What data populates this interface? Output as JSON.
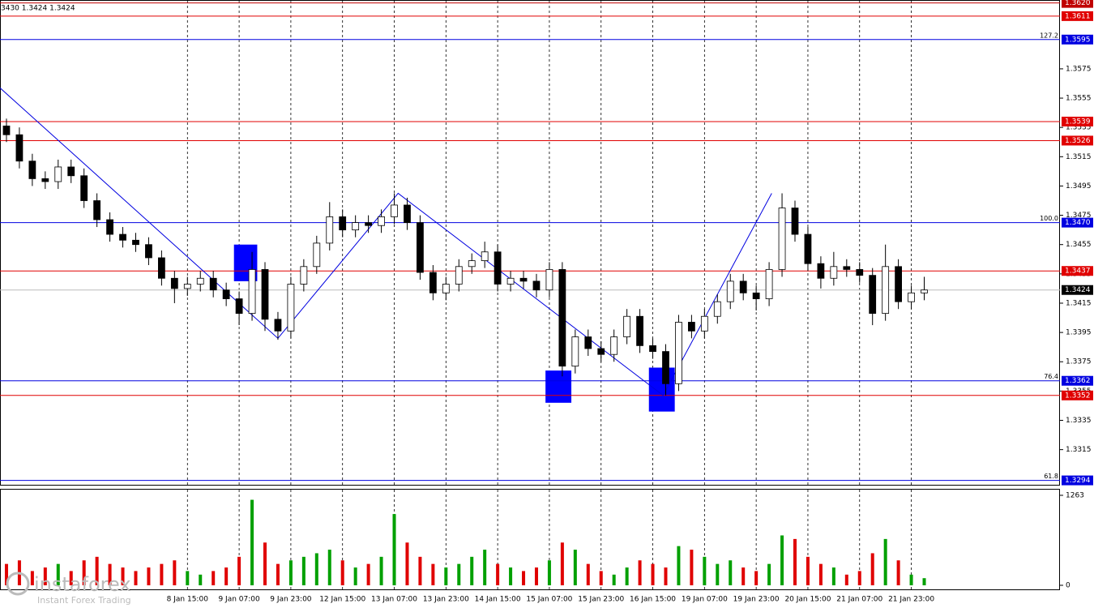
{
  "chart_data": {
    "type": "candlestick",
    "header": "3430 1.3424 1.3424",
    "watermark": "instaforex",
    "watermark_sub": "Instant Forex Trading",
    "xlim": [
      -0.5,
      81.5
    ],
    "xticks": [
      {
        "value": 14,
        "label": "8 Jan 15:00"
      },
      {
        "value": 18,
        "label": "9 Jan 07:00"
      },
      {
        "value": 22,
        "label": "9 Jan 23:00"
      },
      {
        "value": 26,
        "label": "12 Jan 15:00"
      },
      {
        "value": 30,
        "label": "13 Jan 07:00"
      },
      {
        "value": 34,
        "label": "13 Jan 23:00"
      },
      {
        "value": 38,
        "label": "14 Jan 15:00"
      },
      {
        "value": 42,
        "label": "15 Jan 07:00"
      },
      {
        "value": 46,
        "label": "15 Jan 23:00"
      },
      {
        "value": 50,
        "label": "16 Jan 15:00"
      },
      {
        "value": 54,
        "label": "19 Jan 07:00"
      },
      {
        "value": 58,
        "label": "19 Jan 23:00"
      },
      {
        "value": 62,
        "label": "20 Jan 15:00"
      },
      {
        "value": 66,
        "label": "21 Jan 07:00"
      },
      {
        "value": 70,
        "label": "21 Jan 23:00"
      }
    ],
    "grid": true,
    "ylim": [
      1.3291,
      1.3622
    ],
    "yticks": [
      1.3315,
      1.3335,
      1.3355,
      1.3375,
      1.3395,
      1.3415,
      1.3435,
      1.3455,
      1.3475,
      1.3495,
      1.3515,
      1.3535,
      1.3555,
      1.3575
    ],
    "open": [
      1.3536,
      1.353,
      1.3512,
      1.35,
      1.3498,
      1.3508,
      1.3502,
      1.3485,
      1.3472,
      1.3462,
      1.3458,
      1.3455,
      1.3446,
      1.3432,
      1.3425,
      1.3428,
      1.3432,
      1.3424,
      1.3418,
      1.3408,
      1.3438,
      1.3404,
      1.3396,
      1.3428,
      1.344,
      1.3456,
      1.3474,
      1.3465,
      1.347,
      1.3468,
      1.3474,
      1.3482,
      1.347,
      1.3436,
      1.3422,
      1.3428,
      1.344,
      1.3444,
      1.345,
      1.3428,
      1.3432,
      1.343,
      1.3424,
      1.3438,
      1.3372,
      1.3392,
      1.3384,
      1.338,
      1.3392,
      1.3406,
      1.3386,
      1.3382,
      1.336,
      1.3402,
      1.3396,
      1.3406,
      1.3416,
      1.343,
      1.3422,
      1.3418,
      1.3438,
      1.348,
      1.3462,
      1.3442,
      1.3432,
      1.344,
      1.3438,
      1.3434,
      1.3408,
      1.344,
      1.3416,
      1.3422
    ],
    "high": [
      1.3541,
      1.3535,
      1.3517,
      1.3505,
      1.3513,
      1.3513,
      1.3507,
      1.349,
      1.3477,
      1.3467,
      1.3463,
      1.346,
      1.3451,
      1.3437,
      1.3433,
      1.3437,
      1.3437,
      1.3429,
      1.3423,
      1.345,
      1.3443,
      1.3409,
      1.3433,
      1.3445,
      1.3461,
      1.3484,
      1.3479,
      1.3475,
      1.3475,
      1.3479,
      1.349,
      1.3487,
      1.3475,
      1.3441,
      1.3433,
      1.3445,
      1.3449,
      1.3457,
      1.3455,
      1.3437,
      1.3437,
      1.3435,
      1.3443,
      1.3443,
      1.3397,
      1.3397,
      1.3389,
      1.3397,
      1.3411,
      1.3411,
      1.3391,
      1.3387,
      1.3407,
      1.3407,
      1.3411,
      1.3421,
      1.3435,
      1.3435,
      1.3427,
      1.3443,
      1.349,
      1.3485,
      1.3467,
      1.3447,
      1.345,
      1.3445,
      1.3443,
      1.3439,
      1.3455,
      1.3445,
      1.3427,
      1.3433
    ],
    "low": [
      1.3525,
      1.3507,
      1.3495,
      1.3493,
      1.3493,
      1.3497,
      1.348,
      1.3467,
      1.3457,
      1.3453,
      1.345,
      1.3441,
      1.3427,
      1.3415,
      1.342,
      1.3423,
      1.3419,
      1.3413,
      1.34,
      1.3403,
      1.3396,
      1.339,
      1.3391,
      1.3423,
      1.3435,
      1.3451,
      1.346,
      1.346,
      1.3463,
      1.3463,
      1.3469,
      1.3465,
      1.3431,
      1.3417,
      1.3417,
      1.3423,
      1.3435,
      1.3439,
      1.3423,
      1.3423,
      1.3425,
      1.3419,
      1.3419,
      1.3365,
      1.3367,
      1.3379,
      1.3375,
      1.3375,
      1.3387,
      1.3381,
      1.3377,
      1.3352,
      1.3355,
      1.3391,
      1.3391,
      1.3401,
      1.3411,
      1.3417,
      1.341,
      1.3413,
      1.3433,
      1.3457,
      1.3437,
      1.3425,
      1.3427,
      1.3433,
      1.3429,
      1.34,
      1.3403,
      1.3411,
      1.3411,
      1.3417
    ],
    "close": [
      1.353,
      1.3512,
      1.35,
      1.3498,
      1.3508,
      1.3502,
      1.3485,
      1.3472,
      1.3462,
      1.3458,
      1.3455,
      1.3446,
      1.3432,
      1.3425,
      1.3428,
      1.3432,
      1.3424,
      1.3418,
      1.3408,
      1.3438,
      1.3404,
      1.3396,
      1.3428,
      1.344,
      1.3456,
      1.3474,
      1.3465,
      1.347,
      1.3468,
      1.3474,
      1.3482,
      1.347,
      1.3436,
      1.3422,
      1.3428,
      1.344,
      1.3444,
      1.345,
      1.3428,
      1.3432,
      1.343,
      1.3424,
      1.3438,
      1.3372,
      1.3392,
      1.3384,
      1.338,
      1.3392,
      1.3406,
      1.3386,
      1.3382,
      1.336,
      1.3402,
      1.3396,
      1.3406,
      1.3416,
      1.343,
      1.3422,
      1.3418,
      1.3438,
      1.348,
      1.3462,
      1.3442,
      1.3432,
      1.344,
      1.3438,
      1.3434,
      1.3408,
      1.344,
      1.3416,
      1.3422,
      1.3424
    ],
    "volume": [
      300,
      350,
      200,
      250,
      300,
      200,
      350,
      400,
      300,
      250,
      200,
      250,
      300,
      350,
      200,
      150,
      200,
      250,
      400,
      1200,
      600,
      300,
      350,
      400,
      450,
      500,
      350,
      250,
      300,
      400,
      1000,
      600,
      400,
      300,
      250,
      300,
      400,
      500,
      300,
      250,
      200,
      250,
      350,
      600,
      500,
      300,
      200,
      150,
      250,
      350,
      300,
      250,
      550,
      500,
      400,
      300,
      350,
      250,
      200,
      300,
      700,
      650,
      400,
      300,
      250,
      150,
      200,
      450,
      650,
      350,
      150,
      100
    ],
    "volume_ylim": [
      0,
      1263
    ],
    "volume_yticks": [
      0,
      1263
    ],
    "up_volume_color": "#00a000",
    "down_volume_color": "#e00000",
    "levels": [
      {
        "value": 1.362,
        "label": "1.3620",
        "color": "#c00000"
      },
      {
        "value": 1.3611,
        "label": "1.3611",
        "color": "#e00000"
      },
      {
        "value": 1.3595,
        "label": "1.3595",
        "color": "#0000e0",
        "fib": "127.2"
      },
      {
        "value": 1.3539,
        "label": "1.3539",
        "color": "#e00000"
      },
      {
        "value": 1.3526,
        "label": "1.3526",
        "color": "#e00000"
      },
      {
        "value": 1.347,
        "label": "1.3470",
        "color": "#0000e0",
        "fib": "100.0"
      },
      {
        "value": 1.3437,
        "label": "1.3437",
        "color": "#e00000"
      },
      {
        "value": 1.3362,
        "label": "1.3362",
        "color": "#0000e0",
        "fib": "76.4"
      },
      {
        "value": 1.3352,
        "label": "1.3352",
        "color": "#e00000"
      },
      {
        "value": 1.3294,
        "label": "1.3294",
        "color": "#0000e0",
        "fib": "61.8"
      }
    ],
    "current_price": 1.3424,
    "zigzag": {
      "x": [
        -0.5,
        21,
        30.3,
        50.8,
        59.2
      ],
      "values": [
        1.3562,
        1.3391,
        1.349,
        1.3352,
        1.349
      ],
      "color": "#0000e0"
    },
    "zones": [
      {
        "x": [
          17.6,
          19.4
        ],
        "y": [
          1.343,
          1.3455
        ],
        "color": "#0000ff"
      },
      {
        "x": [
          41.7,
          43.7
        ],
        "y": [
          1.3347,
          1.3369
        ],
        "color": "#0000ff"
      },
      {
        "x": [
          49.7,
          51.7
        ],
        "y": [
          1.3341,
          1.3371
        ],
        "color": "#0000ff"
      }
    ]
  }
}
